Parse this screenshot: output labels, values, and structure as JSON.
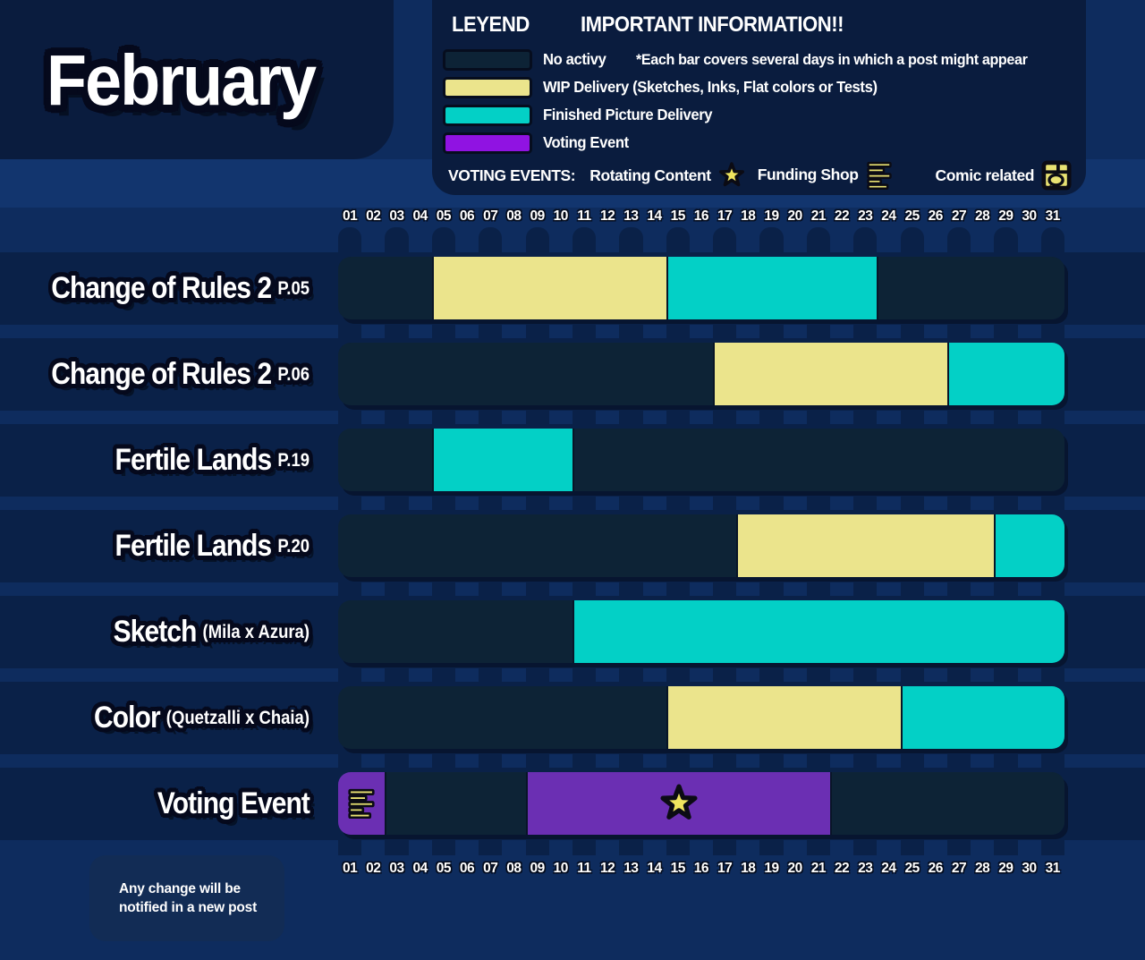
{
  "title": "February",
  "legend": {
    "title": "LEYEND",
    "info_title": "IMPORTANT INFORMATION!!",
    "note": "*Each bar covers several days in which a post  might appear",
    "items": [
      {
        "key": "no_activity",
        "label": "No activy"
      },
      {
        "key": "wip",
        "label": "WIP Delivery (Sketches, Inks, Flat colors or Tests)"
      },
      {
        "key": "finished",
        "label": "Finished Picture Delivery"
      },
      {
        "key": "voting",
        "label": "Voting Event"
      }
    ],
    "voting_events": {
      "label": "VOTING EVENTS:",
      "entries": [
        {
          "label": "Rotating Content",
          "icon": "star"
        },
        {
          "label": "Funding Shop",
          "icon": "funding-shop"
        },
        {
          "label": "Comic related",
          "icon": "comic"
        }
      ]
    }
  },
  "colors": {
    "no_activity": "#0d2336",
    "wip": "#ebe48c",
    "finished": "#03d0c6",
    "voting": "#6b2fb3",
    "voting_swatch": "#9013e2",
    "icon_yellow": "#e9e272",
    "star_yellow": "#f0e55e"
  },
  "chart_data": {
    "type": "gantt",
    "month": "February",
    "x_unit": "day of month",
    "x_ticks": [
      "01",
      "02",
      "03",
      "04",
      "05",
      "06",
      "07",
      "08",
      "09",
      "10",
      "11",
      "12",
      "13",
      "14",
      "15",
      "16",
      "17",
      "18",
      "19",
      "20",
      "21",
      "22",
      "23",
      "24",
      "25",
      "26",
      "27",
      "28",
      "29",
      "30",
      "31"
    ],
    "statuses": {
      "no_activity": "No activy",
      "wip": "WIP Delivery (Sketches, Inks, Flat colors or Tests)",
      "finished": "Finished Picture Delivery",
      "voting": "Voting Event"
    },
    "rows": [
      {
        "label": "Change of Rules 2",
        "sublabel": "P.05",
        "segments": [
          {
            "from": 1,
            "to": 4,
            "status": "no_activity"
          },
          {
            "from": 5,
            "to": 14,
            "status": "wip"
          },
          {
            "from": 15,
            "to": 23,
            "status": "finished"
          },
          {
            "from": 24,
            "to": 31,
            "status": "no_activity"
          }
        ]
      },
      {
        "label": "Change of Rules 2",
        "sublabel": "P.06",
        "segments": [
          {
            "from": 1,
            "to": 16,
            "status": "no_activity"
          },
          {
            "from": 17,
            "to": 26,
            "status": "wip"
          },
          {
            "from": 27,
            "to": 31,
            "status": "finished"
          }
        ]
      },
      {
        "label": "Fertile Lands",
        "sublabel": "P.19",
        "segments": [
          {
            "from": 1,
            "to": 4,
            "status": "no_activity"
          },
          {
            "from": 5,
            "to": 10,
            "status": "finished"
          },
          {
            "from": 11,
            "to": 31,
            "status": "no_activity"
          }
        ]
      },
      {
        "label": "Fertile Lands",
        "sublabel": "P.20",
        "segments": [
          {
            "from": 1,
            "to": 17,
            "status": "no_activity"
          },
          {
            "from": 18,
            "to": 28,
            "status": "wip"
          },
          {
            "from": 29,
            "to": 31,
            "status": "finished"
          }
        ]
      },
      {
        "label": "Sketch",
        "sublabel": "(Mila x Azura)",
        "segments": [
          {
            "from": 1,
            "to": 10,
            "status": "no_activity"
          },
          {
            "from": 11,
            "to": 31,
            "status": "finished"
          }
        ]
      },
      {
        "label": "Color",
        "sublabel": "(Quetzalli x Chaia)",
        "segments": [
          {
            "from": 1,
            "to": 14,
            "status": "no_activity"
          },
          {
            "from": 15,
            "to": 24,
            "status": "wip"
          },
          {
            "from": 25,
            "to": 31,
            "status": "finished"
          }
        ]
      },
      {
        "label": "Voting Event",
        "sublabel": "",
        "segments": [
          {
            "from": 1,
            "to": 2,
            "status": "voting",
            "icon": "funding-shop"
          },
          {
            "from": 3,
            "to": 8,
            "status": "no_activity"
          },
          {
            "from": 9,
            "to": 21,
            "status": "voting",
            "icon": "star"
          },
          {
            "from": 22,
            "to": 31,
            "status": "no_activity"
          }
        ]
      }
    ]
  },
  "footer": {
    "note_line1": "Any change will be",
    "note_line2": "notified in a new post"
  }
}
